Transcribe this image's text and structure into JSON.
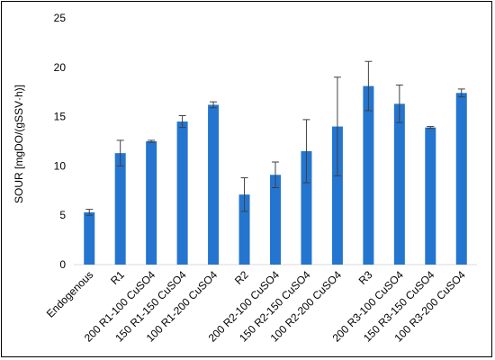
{
  "chart_data": {
    "type": "bar",
    "title": "",
    "xlabel": "",
    "ylabel": "SOUR [mgDO/(gSSV·h)]",
    "ylim": [
      0,
      25
    ],
    "yticks": [
      0,
      5,
      10,
      15,
      20,
      25
    ],
    "grid": false,
    "legend": "none",
    "categories": [
      "Endogenous",
      "R1",
      "200 R1-100 CuSO4",
      "150 R1-150 CuSO4",
      "100 R1-200 CuSO4",
      "R2",
      "200 R2-100 CuSO4",
      "150 R2-150 CuSO4",
      "100 R2-200 CuSO4",
      "R3",
      "200 R3-100 CuSO4",
      "150 R3-150 CuSO4",
      "100 R3-200 CuSO4"
    ],
    "values": [
      5.3,
      11.3,
      12.5,
      14.5,
      16.2,
      7.1,
      9.1,
      11.5,
      14.0,
      18.1,
      16.3,
      13.9,
      17.4
    ],
    "error": [
      0.3,
      1.3,
      0.1,
      0.6,
      0.3,
      1.7,
      1.3,
      3.2,
      5.0,
      2.5,
      1.9,
      0.1,
      0.4
    ],
    "colors": {
      "bar": "#2475CF",
      "error_bar": "#404040",
      "axis": "#d9d9d9"
    }
  }
}
